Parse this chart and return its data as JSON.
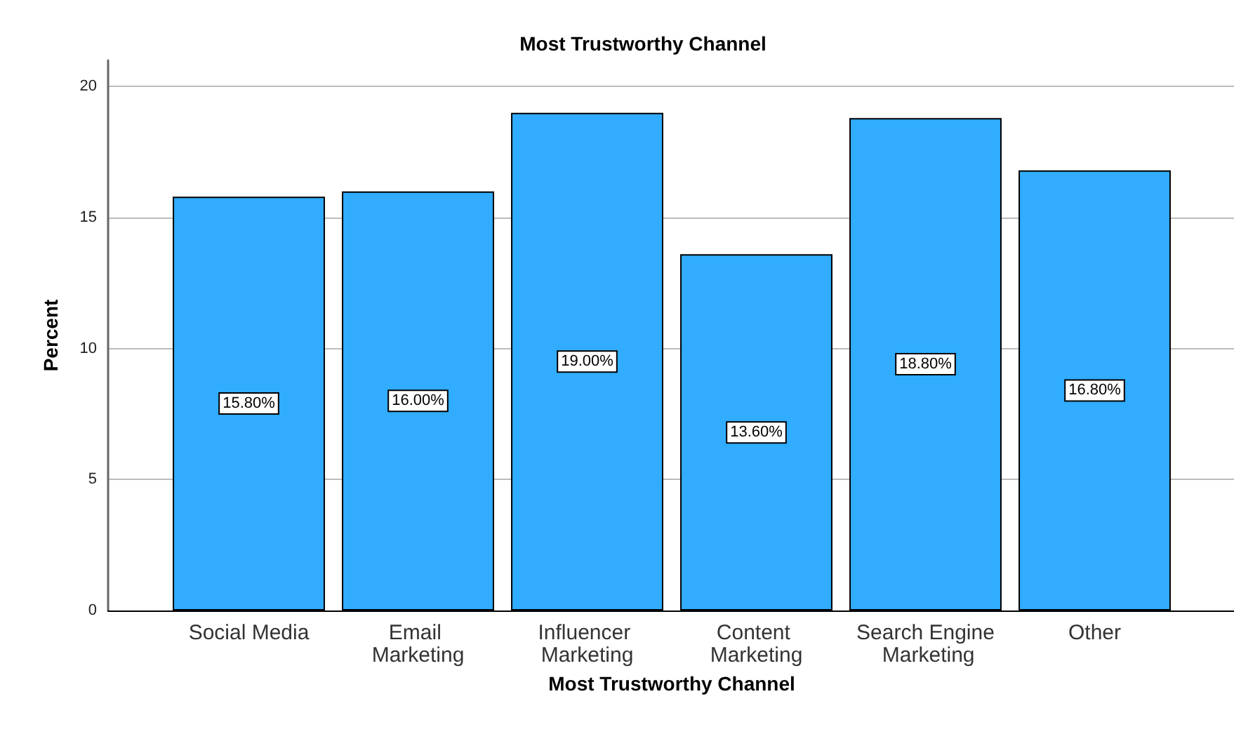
{
  "chart_data": {
    "type": "bar",
    "title": "Most Trustworthy Channel",
    "xlabel": "Most Trustworthy Channel",
    "ylabel": "Percent",
    "categories": [
      "Social Media",
      "Email Marketing",
      "Influencer Marketing",
      "Content Marketing",
      "Search Engine Marketing",
      "Other"
    ],
    "values": [
      15.8,
      16.0,
      19.0,
      13.6,
      18.8,
      16.8
    ],
    "value_labels": [
      "15.80%",
      "16.00%",
      "19.00%",
      "13.60%",
      "18.80%",
      "16.80%"
    ],
    "color": "#31acfe",
    "ylim": [
      0,
      21
    ],
    "yticks": [
      0,
      5,
      10,
      15,
      20
    ],
    "grid": "y"
  }
}
